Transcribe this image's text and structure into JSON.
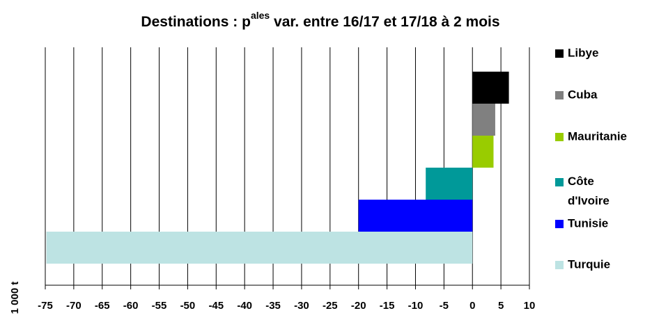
{
  "chart_data": {
    "type": "bar",
    "orientation": "horizontal",
    "title": [
      "Destinations : p",
      "ales",
      " var. entre 16/17 et 17/18 à 2 mois"
    ],
    "y_label": "1 000 t",
    "series": [
      {
        "name": "Libye",
        "color": "#000000",
        "values": [
          6.4
        ]
      },
      {
        "name": "Cuba",
        "color": "#808080",
        "values": [
          4.0
        ]
      },
      {
        "name": "Mauritanie",
        "color": "#99cc00",
        "values": [
          3.7
        ]
      },
      {
        "name": "Côte d'Ivoire",
        "color": "#009999",
        "values": [
          -8.2
        ]
      },
      {
        "name": "Tunisie",
        "color": "#0000ff",
        "values": [
          -20
        ]
      },
      {
        "name": "Turquie",
        "color": "#bde3e3",
        "values": [
          -74.8
        ]
      }
    ],
    "xlim": [
      -75,
      10
    ],
    "xticks": [
      -75,
      -70,
      -65,
      -60,
      -55,
      -50,
      -45,
      -40,
      -35,
      -30,
      -25,
      -20,
      -15,
      -10,
      -5,
      0,
      5,
      10
    ],
    "grid": true,
    "legend": "right"
  }
}
